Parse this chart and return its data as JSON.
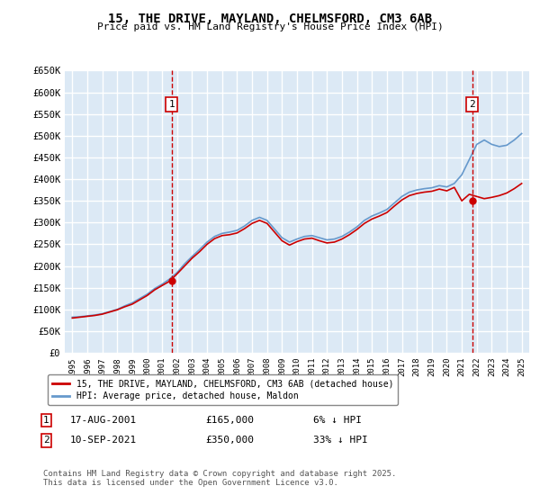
{
  "title": "15, THE DRIVE, MAYLAND, CHELMSFORD, CM3 6AB",
  "subtitle": "Price paid vs. HM Land Registry's House Price Index (HPI)",
  "ylim": [
    0,
    650000
  ],
  "yticks": [
    0,
    50000,
    100000,
    150000,
    200000,
    250000,
    300000,
    350000,
    400000,
    450000,
    500000,
    550000,
    600000,
    650000
  ],
  "ytick_labels": [
    "£0",
    "£50K",
    "£100K",
    "£150K",
    "£200K",
    "£250K",
    "£300K",
    "£350K",
    "£400K",
    "£450K",
    "£500K",
    "£550K",
    "£600K",
    "£650K"
  ],
  "xlim": [
    1994.5,
    2025.5
  ],
  "plot_bg": "#dce9f5",
  "grid_color": "#ffffff",
  "red_color": "#cc0000",
  "blue_color": "#6699cc",
  "sale1_x": 2001.63,
  "sale1_y": 165000,
  "sale2_x": 2021.7,
  "sale2_y": 350000,
  "legend_label_red": "15, THE DRIVE, MAYLAND, CHELMSFORD, CM3 6AB (detached house)",
  "legend_label_blue": "HPI: Average price, detached house, Maldon",
  "copyright": "Contains HM Land Registry data © Crown copyright and database right 2025.\nThis data is licensed under the Open Government Licence v3.0.",
  "hpi_years": [
    1995,
    1995.5,
    1996,
    1996.5,
    1997,
    1997.5,
    1998,
    1998.5,
    1999,
    1999.5,
    2000,
    2000.5,
    2001,
    2001.5,
    2002,
    2002.5,
    2003,
    2003.5,
    2004,
    2004.5,
    2005,
    2005.5,
    2006,
    2006.5,
    2007,
    2007.5,
    2008,
    2008.5,
    2009,
    2009.5,
    2010,
    2010.5,
    2011,
    2011.5,
    2012,
    2012.5,
    2013,
    2013.5,
    2014,
    2014.5,
    2015,
    2015.5,
    2016,
    2016.5,
    2017,
    2017.5,
    2018,
    2018.5,
    2019,
    2019.5,
    2020,
    2020.5,
    2021,
    2021.5,
    2022,
    2022.5,
    2023,
    2023.5,
    2024,
    2024.5,
    2025
  ],
  "hpi_values": [
    82000,
    83000,
    85000,
    87000,
    90000,
    95000,
    100000,
    108000,
    115000,
    125000,
    135000,
    148000,
    158000,
    170000,
    185000,
    205000,
    222000,
    238000,
    255000,
    268000,
    275000,
    278000,
    282000,
    292000,
    305000,
    312000,
    305000,
    285000,
    265000,
    255000,
    262000,
    268000,
    270000,
    265000,
    260000,
    262000,
    268000,
    278000,
    290000,
    305000,
    315000,
    322000,
    330000,
    345000,
    360000,
    370000,
    375000,
    378000,
    380000,
    385000,
    382000,
    390000,
    410000,
    445000,
    480000,
    490000,
    480000,
    475000,
    478000,
    490000,
    505000
  ],
  "red_years": [
    1995,
    1995.5,
    1996,
    1996.5,
    1997,
    1997.5,
    1998,
    1998.5,
    1999,
    1999.5,
    2000,
    2000.5,
    2001,
    2001.5,
    2002,
    2002.5,
    2003,
    2003.5,
    2004,
    2004.5,
    2005,
    2005.5,
    2006,
    2006.5,
    2007,
    2007.5,
    2008,
    2008.5,
    2009,
    2009.5,
    2010,
    2010.5,
    2011,
    2011.5,
    2012,
    2012.5,
    2013,
    2013.5,
    2014,
    2014.5,
    2015,
    2015.5,
    2016,
    2016.5,
    2017,
    2017.5,
    2018,
    2018.5,
    2019,
    2019.5,
    2020,
    2020.5,
    2021,
    2021.5,
    2022,
    2022.5,
    2023,
    2023.5,
    2024,
    2024.5,
    2025
  ],
  "red_values": [
    80000,
    82000,
    84000,
    86000,
    89000,
    94000,
    99000,
    106000,
    112000,
    122000,
    132000,
    145000,
    155000,
    165000,
    182000,
    200000,
    218000,
    233000,
    250000,
    263000,
    270000,
    272000,
    276000,
    286000,
    298000,
    305000,
    298000,
    278000,
    258000,
    248000,
    256000,
    262000,
    264000,
    258000,
    253000,
    255000,
    262000,
    272000,
    284000,
    298000,
    308000,
    315000,
    323000,
    338000,
    352000,
    362000,
    367000,
    370000,
    372000,
    377000,
    373000,
    381000,
    350000,
    365000,
    360000,
    355000,
    358000,
    362000,
    368000,
    378000,
    390000
  ]
}
